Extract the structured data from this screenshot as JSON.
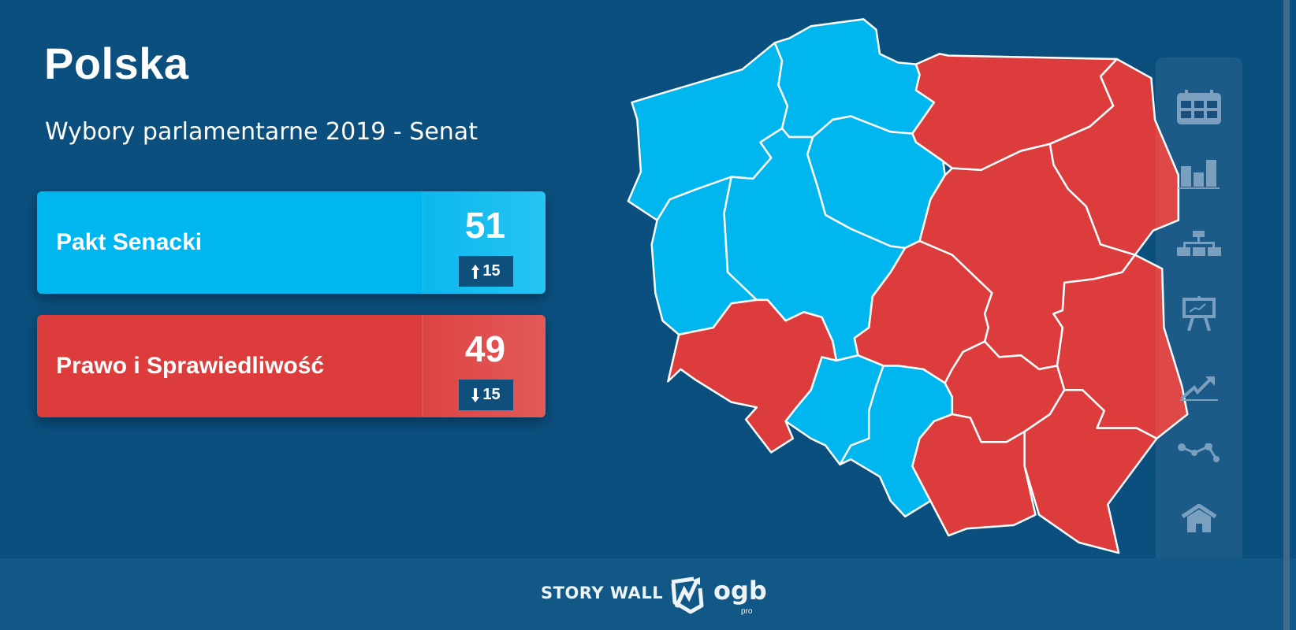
{
  "header": {
    "title": "Polska",
    "subtitle": "Wybory parlamentarne 2019 - Senat"
  },
  "results": [
    {
      "party": "Pakt Senacki",
      "seats": "51",
      "change": "15",
      "direction": "up",
      "color": "#00b6ee"
    },
    {
      "party": "Prawo i Sprawiedliwość",
      "seats": "49",
      "change": "15",
      "direction": "down",
      "color": "#dc3c3b"
    }
  ],
  "map": {
    "colors": {
      "pakt_senacki": "#00b6ee",
      "pis": "#dc3c3b",
      "border": "#ffffff"
    },
    "regions": [
      {
        "id": "zachodniopomorskie",
        "winner": "pakt_senacki"
      },
      {
        "id": "pomorskie",
        "winner": "pakt_senacki"
      },
      {
        "id": "warminsko-mazurskie",
        "winner": "pis"
      },
      {
        "id": "podlaskie",
        "winner": "pis"
      },
      {
        "id": "kujawsko-pomorskie",
        "winner": "pakt_senacki"
      },
      {
        "id": "lubuskie",
        "winner": "pakt_senacki"
      },
      {
        "id": "wielkopolskie",
        "winner": "pakt_senacki"
      },
      {
        "id": "dolnoslaskie",
        "winner": "pis"
      },
      {
        "id": "lodzkie",
        "winner": "pis"
      },
      {
        "id": "mazowieckie",
        "winner": "pis"
      },
      {
        "id": "lubelskie",
        "winner": "pis"
      },
      {
        "id": "opolskie",
        "winner": "pakt_senacki"
      },
      {
        "id": "slaskie",
        "winner": "pakt_senacki"
      },
      {
        "id": "swietokrzyskie",
        "winner": "pis"
      },
      {
        "id": "malopolskie",
        "winner": "pis"
      },
      {
        "id": "podkarpackie",
        "winner": "pis"
      }
    ]
  },
  "sidebar": {
    "icons": [
      "calendar-icon",
      "bar-chart-icon",
      "org-chart-icon",
      "presentation-icon",
      "trend-up-icon",
      "line-points-icon",
      "home-icon"
    ]
  },
  "footer": {
    "brand": "STORY WALL",
    "logo_text": "ogb",
    "logo_sub": "pro"
  }
}
